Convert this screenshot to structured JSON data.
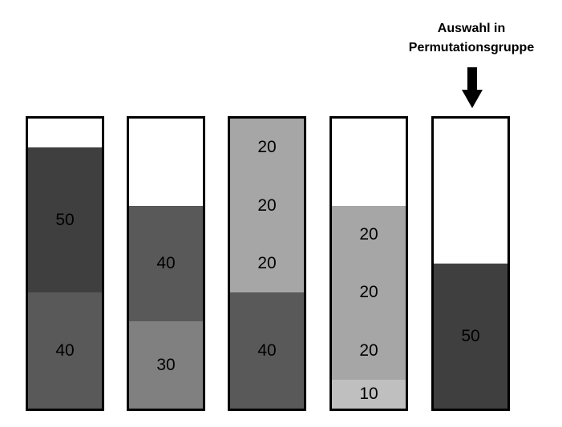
{
  "callout": {
    "line1": "Auswahl in",
    "line2": "Permutationsgruppe"
  },
  "scale_max": 100,
  "columns": [
    {
      "segments": [
        {
          "value": 40,
          "color": "#595959"
        },
        {
          "value": 50,
          "color": "#3f3f3f"
        }
      ]
    },
    {
      "segments": [
        {
          "value": 30,
          "color": "#808080"
        },
        {
          "value": 40,
          "color": "#595959"
        }
      ]
    },
    {
      "segments": [
        {
          "value": 40,
          "color": "#595959"
        },
        {
          "value": 20,
          "color": "#a6a6a6"
        },
        {
          "value": 20,
          "color": "#a6a6a6"
        },
        {
          "value": 20,
          "color": "#a6a6a6"
        }
      ]
    },
    {
      "segments": [
        {
          "value": 10,
          "color": "#bfbfbf"
        },
        {
          "value": 20,
          "color": "#a6a6a6"
        },
        {
          "value": 20,
          "color": "#a6a6a6"
        },
        {
          "value": 20,
          "color": "#a6a6a6"
        }
      ]
    },
    {
      "segments": [
        {
          "value": 50,
          "color": "#3f3f3f"
        }
      ]
    }
  ]
}
